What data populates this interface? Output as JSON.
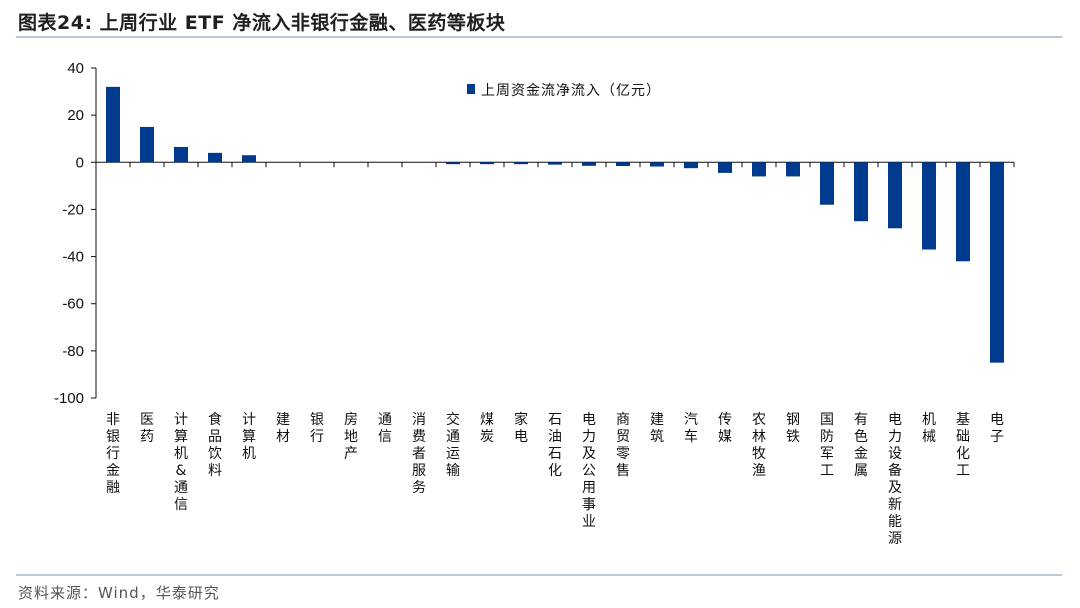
{
  "header": {
    "title_prefix": "图表24:",
    "title_text": "上周行业 ETF 净流入非银行金融、医药等板块"
  },
  "footer": {
    "source": "资料来源：Wind，华泰研究"
  },
  "chart_data": {
    "type": "bar",
    "legend": "上周资金流净流入（亿元）",
    "legend_position": "top-center",
    "bar_color": "#003a8c",
    "grid": false,
    "ylim": [
      -100,
      40
    ],
    "yticks": [
      40,
      20,
      0,
      -20,
      -40,
      -60,
      -80,
      -100
    ],
    "categories": [
      "非银行金融",
      "医药",
      "计算机&通信",
      "食品饮料",
      "计算机",
      "建材",
      "银行",
      "房地产",
      "通信",
      "消费者服务",
      "交通运输",
      "煤炭",
      "家电",
      "石油石化",
      "电力及公用事业",
      "商贸零售",
      "建筑",
      "汽车",
      "传媒",
      "农林牧渔",
      "钢铁",
      "国防军工",
      "有色金属",
      "电力设备及新能源",
      "机械",
      "基础化工",
      "电子"
    ],
    "series": [
      {
        "values": [
          32,
          15,
          6.5,
          4,
          3,
          0,
          0,
          0,
          0,
          0,
          -0.8,
          -0.8,
          -0.8,
          -1,
          -1.5,
          -1.6,
          -1.8,
          -2.5,
          -4.5,
          -6,
          -6,
          -18,
          -25,
          -28,
          -37,
          -42,
          -85
        ]
      }
    ]
  }
}
